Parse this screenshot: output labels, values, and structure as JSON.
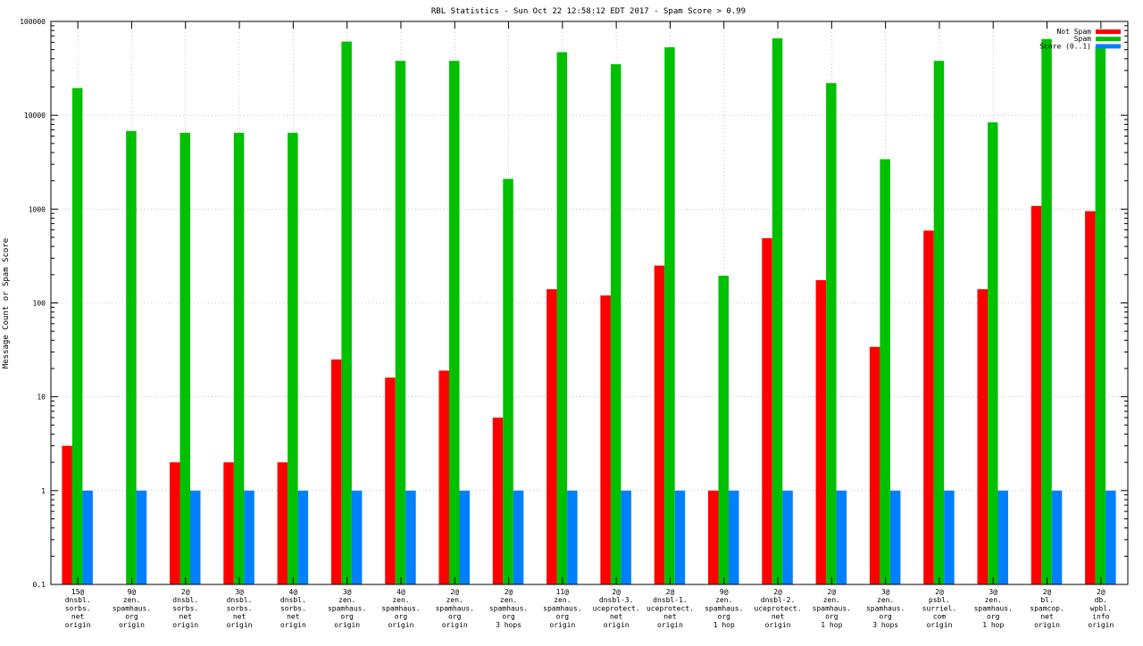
{
  "chart_data": {
    "type": "bar",
    "title": "RBL Statistics - Sun Oct 22 12:58:12 EDT 2017 - Spam Score > 0.99",
    "xlabel": "",
    "ylabel": "Message Count or Spam Score",
    "yscale": "log",
    "ylim": [
      0.1,
      100000
    ],
    "yticks": [
      "0.1",
      "1",
      "10",
      "100",
      "1000",
      "10000",
      "100000"
    ],
    "grid": "dotted",
    "legend_position": "top-right",
    "categories": [
      [
        "15@",
        "dnsbl.",
        "sorbs.",
        "net",
        "origin"
      ],
      [
        "9@",
        "zen.",
        "spamhaus.",
        "org",
        "origin"
      ],
      [
        "2@",
        "dnsbl.",
        "sorbs.",
        "net",
        "origin"
      ],
      [
        "3@",
        "dnsbl.",
        "sorbs.",
        "net",
        "origin"
      ],
      [
        "4@",
        "dnsbl.",
        "sorbs.",
        "net",
        "origin"
      ],
      [
        "3@",
        "zen.",
        "spamhaus.",
        "org",
        "origin"
      ],
      [
        "4@",
        "zen.",
        "spamhaus.",
        "org",
        "origin"
      ],
      [
        "2@",
        "zen.",
        "spamhaus.",
        "org",
        "origin"
      ],
      [
        "2@",
        "zen.",
        "spamhaus.",
        "org",
        "3 hops"
      ],
      [
        "11@",
        "zen.",
        "spamhaus.",
        "org",
        "origin"
      ],
      [
        "2@",
        "dnsbl-3.",
        "uceprotect.",
        "net",
        "origin"
      ],
      [
        "2@",
        "dnsbl-1.",
        "uceprotect.",
        "net",
        "origin"
      ],
      [
        "9@",
        "zen.",
        "spamhaus.",
        "org",
        "1 hop"
      ],
      [
        "2@",
        "dnsbl-2.",
        "uceprotect.",
        "net",
        "origin"
      ],
      [
        "2@",
        "zen.",
        "spamhaus.",
        "org",
        "1 hop"
      ],
      [
        "3@",
        "zen.",
        "spamhaus.",
        "org",
        "3 hops"
      ],
      [
        "2@",
        "psbl.",
        "surriel.",
        "com",
        "origin"
      ],
      [
        "3@",
        "zen.",
        "spamhaus.",
        "org",
        "1 hop"
      ],
      [
        "2@",
        "bl.",
        "spamcop.",
        "net",
        "origin"
      ],
      [
        "2@",
        "db.",
        "wpbl.",
        "info",
        "origin"
      ]
    ],
    "series": [
      {
        "name": "Not Spam",
        "color": "#ff0000",
        "values": [
          3,
          null,
          2,
          2,
          2,
          25,
          16,
          19,
          6,
          140,
          120,
          250,
          1,
          490,
          175,
          34,
          590,
          140,
          1080,
          950
        ]
      },
      {
        "name": "Spam",
        "color": "#00c000",
        "values": [
          19500,
          6800,
          6500,
          6500,
          6500,
          61000,
          38000,
          38000,
          2100,
          47000,
          35000,
          53000,
          195,
          66000,
          22000,
          3400,
          38000,
          8400,
          65000,
          54000
        ]
      },
      {
        "name": "Score (0..1)",
        "color": "#0080ff",
        "values": [
          1,
          1,
          1,
          1,
          1,
          1,
          1,
          1,
          1,
          1,
          1,
          1,
          1,
          1,
          1,
          1,
          1,
          1,
          1,
          1
        ]
      }
    ]
  }
}
